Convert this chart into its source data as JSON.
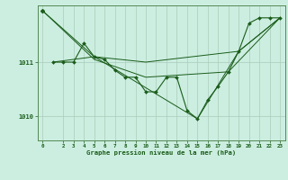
{
  "background_color": "#cceee0",
  "grid_color": "#aaccbb",
  "line_color": "#1a5c1a",
  "marker_color": "#1a5c1a",
  "title": "Graphe pression niveau de la mer (hPa)",
  "ylim": [
    1009.55,
    1012.05
  ],
  "yticks": [
    1010,
    1011
  ],
  "xlim": [
    -0.5,
    23.5
  ],
  "xticks": [
    0,
    2,
    3,
    4,
    5,
    6,
    7,
    8,
    9,
    10,
    11,
    12,
    13,
    14,
    15,
    16,
    17,
    18,
    19,
    20,
    21,
    22,
    23
  ],
  "series_main": {
    "x": [
      1,
      2,
      3,
      4,
      5,
      6,
      7,
      8,
      9,
      10,
      11,
      12,
      13,
      14,
      15,
      16,
      17,
      18,
      19,
      20,
      21,
      22,
      23
    ],
    "y": [
      1011.0,
      1011.0,
      1011.0,
      1011.35,
      1011.1,
      1011.05,
      1010.85,
      1010.72,
      1010.72,
      1010.45,
      1010.45,
      1010.72,
      1010.72,
      1010.1,
      1009.95,
      1010.3,
      1010.55,
      1010.82,
      1011.2,
      1011.72,
      1011.82,
      1011.82,
      1011.82
    ]
  },
  "series_start": {
    "x": [
      0
    ],
    "y": [
      1011.95
    ]
  },
  "envelope_lines": [
    {
      "x": [
        0,
        5,
        10,
        19,
        23
      ],
      "y": [
        1011.95,
        1011.1,
        1011.0,
        1011.2,
        1011.82
      ]
    },
    {
      "x": [
        0,
        5,
        10,
        18,
        23
      ],
      "y": [
        1011.95,
        1011.05,
        1010.72,
        1010.82,
        1011.82
      ]
    },
    {
      "x": [
        1,
        5,
        15,
        19,
        23
      ],
      "y": [
        1011.0,
        1011.1,
        1009.95,
        1011.2,
        1011.82
      ]
    }
  ]
}
